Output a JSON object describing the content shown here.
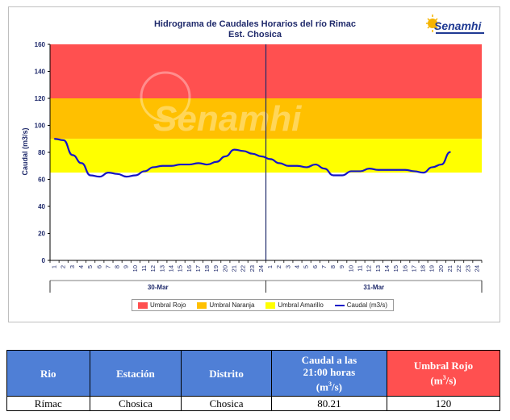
{
  "chart": {
    "title_line1": "Hidrograma de Caudales Horarios del río Rimac",
    "title_line2": "Est. Chosica",
    "logo_text": "Senamhi",
    "watermark_text": "Senamhi"
  },
  "chart_data": {
    "type": "line",
    "ylabel": "Caudal (m3/s)",
    "ylim": [
      0,
      160
    ],
    "yticks": [
      0,
      20,
      40,
      60,
      80,
      100,
      120,
      140,
      160
    ],
    "xtick_labels": [
      "1",
      "2",
      "3",
      "4",
      "5",
      "6",
      "7",
      "8",
      "9",
      "10",
      "11",
      "12",
      "13",
      "14",
      "15",
      "16",
      "17",
      "18",
      "19",
      "20",
      "21",
      "22",
      "23",
      "24"
    ],
    "days": [
      "30-Mar",
      "31-Mar"
    ],
    "grid": false,
    "legend_position": "bottom",
    "thresholds": [
      {
        "name": "Umbral Rojo",
        "from": 120,
        "to": 160,
        "color": "#FF5050"
      },
      {
        "name": "Umbral Naranja",
        "from": 90,
        "to": 120,
        "color": "#FFC000"
      },
      {
        "name": "Umbral Amarillo",
        "from": 65,
        "to": 90,
        "color": "#FFFF00"
      }
    ],
    "series": [
      {
        "name": "Caudal (m3/s)",
        "color": "#1414C8",
        "x": [
          "30-Mar 1",
          "30-Mar 2",
          "30-Mar 3",
          "30-Mar 4",
          "30-Mar 5",
          "30-Mar 6",
          "30-Mar 7",
          "30-Mar 8",
          "30-Mar 9",
          "30-Mar 10",
          "30-Mar 11",
          "30-Mar 12",
          "30-Mar 13",
          "30-Mar 14",
          "30-Mar 15",
          "30-Mar 16",
          "30-Mar 17",
          "30-Mar 18",
          "30-Mar 19",
          "30-Mar 20",
          "30-Mar 21",
          "30-Mar 22",
          "30-Mar 23",
          "30-Mar 24",
          "31-Mar 1",
          "31-Mar 2",
          "31-Mar 3",
          "31-Mar 4",
          "31-Mar 5",
          "31-Mar 6",
          "31-Mar 7",
          "31-Mar 8",
          "31-Mar 9",
          "31-Mar 10",
          "31-Mar 11",
          "31-Mar 12",
          "31-Mar 13",
          "31-Mar 14",
          "31-Mar 15",
          "31-Mar 16",
          "31-Mar 17",
          "31-Mar 18",
          "31-Mar 19",
          "31-Mar 20",
          "31-Mar 21"
        ],
        "values": [
          90,
          89,
          78,
          72,
          63,
          62,
          65,
          64,
          62,
          63,
          66,
          69,
          70,
          70,
          71,
          71,
          72,
          71,
          73,
          77,
          82,
          81,
          79,
          77,
          75,
          72,
          70,
          70,
          69,
          71,
          68,
          63,
          63,
          66,
          66,
          68,
          67,
          67,
          67,
          67,
          66,
          65,
          69,
          71,
          80.21
        ]
      }
    ]
  },
  "legend": {
    "items": [
      {
        "label": "Umbral Rojo",
        "color": "#FF5050",
        "kind": "box"
      },
      {
        "label": "Umbral Naranja",
        "color": "#FFC000",
        "kind": "box"
      },
      {
        "label": "Umbral Amarillo",
        "color": "#FFFF00",
        "kind": "box"
      },
      {
        "label": "Caudal (m3/s)",
        "color": "#1414C8",
        "kind": "line"
      }
    ]
  },
  "table": {
    "header_color": "#4F7FD6",
    "red_header_color": "#FF5050",
    "headers": {
      "rio": "Rio",
      "estacion": "Estación",
      "distrito": "Distrito",
      "caudal_line1": "Caudal a las",
      "caudal_line2": "21:00 horas",
      "caudal_unit": "(m",
      "caudal_unit_sup": "3",
      "caudal_unit_end": "/s)",
      "umbral_line1": "Umbral Rojo",
      "umbral_unit": "(m",
      "umbral_unit_sup": "3",
      "umbral_unit_end": "/s)"
    },
    "row": {
      "rio": "Rímac",
      "estacion": "Chosica",
      "distrito": "Chosica",
      "caudal": "80.21",
      "umbral": "120"
    }
  }
}
